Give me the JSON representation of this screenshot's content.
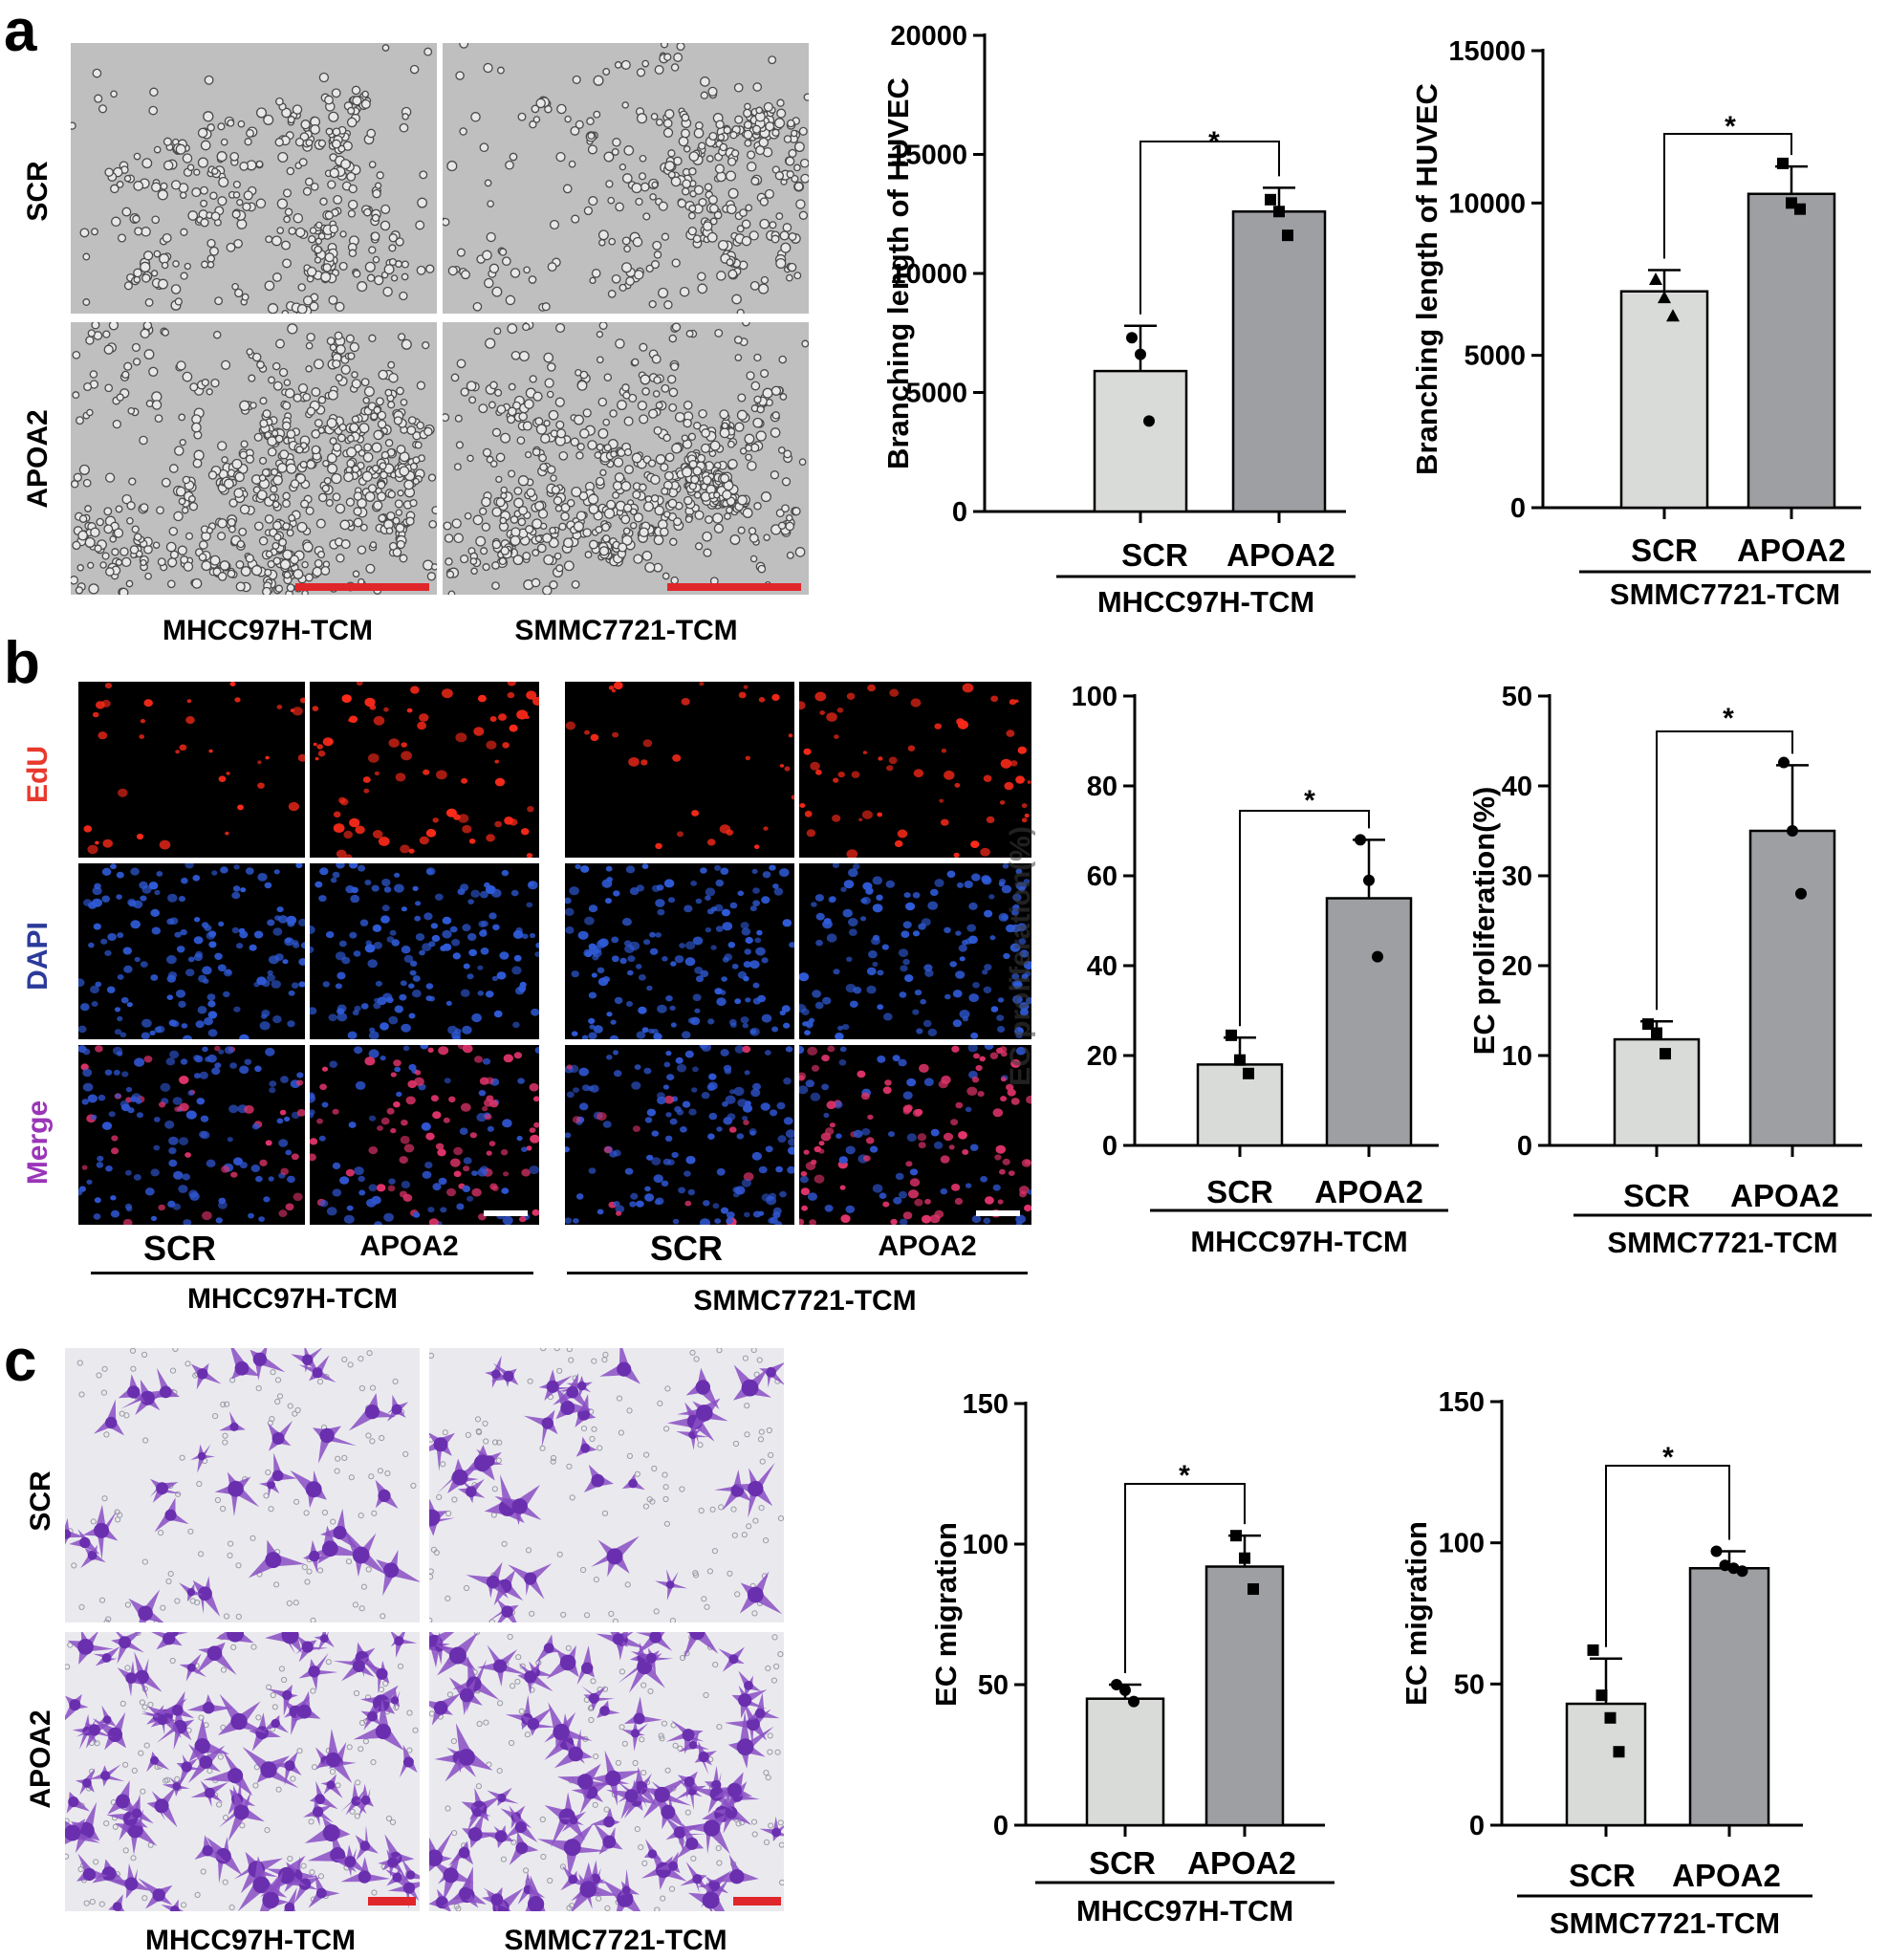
{
  "panels": {
    "a": {
      "label": "a",
      "row_labels": [
        "SCR",
        "APOA2"
      ],
      "col_labels": [
        "MHCC97H-TCM",
        "SMMC7721-TCM"
      ]
    },
    "b": {
      "label": "b",
      "row_labels": [
        "EdU",
        "DAPI",
        "Merge"
      ],
      "col_groups": [
        {
          "conditions": [
            "SCR",
            "APOA2"
          ],
          "group": "MHCC97H-TCM"
        },
        {
          "conditions": [
            "SCR",
            "APOA2"
          ],
          "group": "SMMC7721-TCM"
        }
      ],
      "overlay_text": "EC proliferation(%)"
    },
    "c": {
      "label": "c",
      "row_labels": [
        "SCR",
        "APOA2"
      ],
      "col_labels": [
        "MHCC97H-TCM",
        "SMMC7721-TCM"
      ]
    }
  },
  "colors": {
    "scr_bar": "#d9dbd8",
    "apoa2_bar": "#9d9fa2",
    "scale_red": "#e0262a",
    "edu_label": "#e8392c",
    "dapi_label": "#2b3a9a",
    "merge_label": "#9a35b8"
  },
  "chart_data": [
    {
      "id": "a1",
      "type": "bar",
      "categories": [
        "SCR",
        "APOA2"
      ],
      "group_label": "MHCC97H-TCM",
      "values": [
        5900,
        12600
      ],
      "errors": [
        1900,
        1000
      ],
      "points": [
        [
          7300,
          6600,
          3800
        ],
        [
          13100,
          12600,
          11600
        ]
      ],
      "markers": [
        "circle",
        "square"
      ],
      "ylabel": "Branching length of HUVEC",
      "ylim": [
        0,
        20000
      ],
      "yticks": [
        0,
        5000,
        10000,
        15000,
        20000
      ],
      "significance": "*"
    },
    {
      "id": "a2",
      "type": "bar",
      "categories": [
        "SCR",
        "APOA2"
      ],
      "group_label": "SMMC7721-TCM",
      "values": [
        7100,
        10300
      ],
      "errors": [
        700,
        900
      ],
      "points": [
        [
          7500,
          6900,
          6300
        ],
        [
          11300,
          10000,
          9800
        ]
      ],
      "markers": [
        "triangle",
        "square"
      ],
      "ylabel": "Branching length of HUVEC",
      "ylim": [
        0,
        15000
      ],
      "yticks": [
        0,
        5000,
        10000,
        15000
      ],
      "significance": "*"
    },
    {
      "id": "b1",
      "type": "bar",
      "categories": [
        "SCR",
        "APOA2"
      ],
      "group_label": "MHCC97H-TCM",
      "values": [
        18,
        55
      ],
      "errors": [
        6,
        13
      ],
      "points": [
        [
          24.5,
          19,
          16
        ],
        [
          68,
          59,
          42
        ]
      ],
      "markers": [
        "square",
        "circle"
      ],
      "ylabel": "",
      "ylim": [
        0,
        100
      ],
      "yticks": [
        0,
        20,
        40,
        60,
        80,
        100
      ],
      "significance": "*"
    },
    {
      "id": "b2",
      "type": "bar",
      "categories": [
        "SCR",
        "APOA2"
      ],
      "group_label": "SMMC7721-TCM",
      "values": [
        11.8,
        35
      ],
      "errors": [
        2,
        7.3
      ],
      "points": [
        [
          13.5,
          12.5,
          10.2
        ],
        [
          42.6,
          35,
          28
        ]
      ],
      "markers": [
        "square",
        "circle"
      ],
      "ylabel": "EC proliferation(%)",
      "ylim": [
        0,
        50
      ],
      "yticks": [
        0,
        10,
        20,
        30,
        40,
        50
      ],
      "significance": "*"
    },
    {
      "id": "c1",
      "type": "bar",
      "categories": [
        "SCR",
        "APOA2"
      ],
      "group_label": "MHCC97H-TCM",
      "values": [
        45,
        92
      ],
      "errors": [
        5,
        11
      ],
      "points": [
        [
          50,
          48,
          44
        ],
        [
          103,
          95,
          84
        ]
      ],
      "markers": [
        "circle",
        "square"
      ],
      "ylabel": "EC migration",
      "ylim": [
        0,
        150
      ],
      "yticks": [
        0,
        50,
        100,
        150
      ],
      "significance": "*"
    },
    {
      "id": "c2",
      "type": "bar",
      "categories": [
        "SCR",
        "APOA2"
      ],
      "group_label": "SMMC7721-TCM",
      "values": [
        43,
        91
      ],
      "errors": [
        16,
        6
      ],
      "points": [
        [
          62,
          46,
          38,
          26
        ],
        [
          97,
          92,
          91,
          90
        ]
      ],
      "markers": [
        "square",
        "circle"
      ],
      "ylabel": "EC migration",
      "ylim": [
        0,
        150
      ],
      "yticks": [
        0,
        50,
        100,
        150
      ],
      "significance": "*"
    }
  ]
}
